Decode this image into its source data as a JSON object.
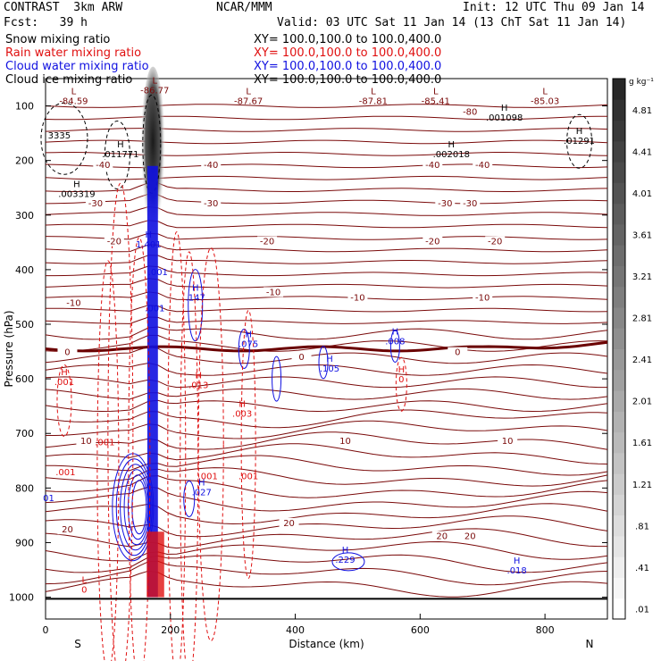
{
  "header": {
    "model": "CONTRAST  3km ARW",
    "org": "NCAR/MMM",
    "init": "Init: 12 UTC Thu 09 Jan 14",
    "fcst": "Fcst:   39 h",
    "valid": "Valid: 03 UTC Sat 11 Jan 14 (13 ChT Sat 11 Jan 14)"
  },
  "colors": {
    "temp": "#7a0a0a",
    "zero": "#6a0000",
    "rain": "#e01010",
    "cloudwater": "#1010e0",
    "black": "#000000"
  },
  "legend": [
    {
      "label": "Snow mixing ratio",
      "xy": "XY= 100.0,100.0 to 100.0,400.0",
      "color": "#000000"
    },
    {
      "label": "Rain water mixing ratio",
      "xy": "XY= 100.0,100.0 to 100.0,400.0",
      "color": "#e01010"
    },
    {
      "label": "Cloud water mixing ratio",
      "xy": "XY= 100.0,100.0 to 100.0,400.0",
      "color": "#1010e0"
    },
    {
      "label": "Cloud ice mixing ratio",
      "xy": "XY= 100.0,100.0 to 100.0,400.0",
      "color": "#000000"
    }
  ],
  "chart_data": {
    "type": "cross-section contour",
    "xlabel": "Distance (km)",
    "ylabel": "Pressure (hPa)",
    "xlim": [
      0,
      900
    ],
    "ylim": [
      1040,
      50
    ],
    "x_ticks": [
      0,
      200,
      400,
      600,
      800
    ],
    "y_ticks": [
      100,
      200,
      300,
      400,
      500,
      600,
      700,
      800,
      900,
      1000
    ],
    "x_end_labels": [
      "S",
      "N"
    ],
    "colorbar": {
      "unit": "g kg⁻¹",
      "labels": [
        ".01",
        ".41",
        ".81",
        "1.21",
        "1.61",
        "2.01",
        "2.41",
        "2.81",
        "3.21",
        "3.61",
        "4.01",
        "4.41",
        "4.81"
      ]
    },
    "temperature_isotherms": [
      {
        "value": -40,
        "p": 205
      },
      {
        "value": -30,
        "p": 258
      },
      {
        "value": -20,
        "p": 330
      },
      {
        "value": -10,
        "p": 412
      },
      {
        "value": 0,
        "p": 512
      },
      {
        "value": 10,
        "p": 605
      },
      {
        "value": 20,
        "p": 700
      }
    ],
    "isotherm_labels": [
      {
        "text": "-40",
        "x": 92,
        "p": 212
      },
      {
        "text": "-40",
        "x": 265,
        "p": 212
      },
      {
        "text": "-40",
        "x": 620,
        "p": 212
      },
      {
        "text": "-40",
        "x": 700,
        "p": 212
      },
      {
        "text": "-30",
        "x": 80,
        "p": 282
      },
      {
        "text": "-30",
        "x": 265,
        "p": 282
      },
      {
        "text": "-30",
        "x": 640,
        "p": 282
      },
      {
        "text": "-30",
        "x": 680,
        "p": 282
      },
      {
        "text": "-20",
        "x": 110,
        "p": 352
      },
      {
        "text": "-20",
        "x": 355,
        "p": 352
      },
      {
        "text": "-20",
        "x": 620,
        "p": 352
      },
      {
        "text": "-20",
        "x": 720,
        "p": 352
      },
      {
        "text": "-10",
        "x": 45,
        "p": 465
      },
      {
        "text": "-10",
        "x": 365,
        "p": 445
      },
      {
        "text": "-10",
        "x": 500,
        "p": 455
      },
      {
        "text": "-10",
        "x": 700,
        "p": 455
      },
      {
        "text": "0",
        "x": 35,
        "p": 555
      },
      {
        "text": "0",
        "x": 410,
        "p": 564
      },
      {
        "text": "0",
        "x": 660,
        "p": 555
      },
      {
        "text": "10",
        "x": 65,
        "p": 718
      },
      {
        "text": "10",
        "x": 480,
        "p": 718
      },
      {
        "text": "10",
        "x": 740,
        "p": 718
      },
      {
        "text": "20",
        "x": 35,
        "p": 880
      },
      {
        "text": "20",
        "x": 390,
        "p": 868
      },
      {
        "text": "20",
        "x": 635,
        "p": 892
      },
      {
        "text": "20",
        "x": 680,
        "p": 892
      }
    ],
    "extrema": [
      {
        "kind": "L",
        "value": "-84.59",
        "x": 45,
        "p": 95,
        "color": "#7a0a0a"
      },
      {
        "kind": "L",
        "value": "-86.77",
        "x": 175,
        "p": 75,
        "color": "#7a0a0a"
      },
      {
        "kind": "L",
        "value": "-87.67",
        "x": 325,
        "p": 95,
        "color": "#7a0a0a"
      },
      {
        "kind": "L",
        "value": "-87.81",
        "x": 525,
        "p": 95,
        "color": "#7a0a0a"
      },
      {
        "kind": "L",
        "value": "-85.41",
        "x": 625,
        "p": 95,
        "color": "#7a0a0a"
      },
      {
        "kind": "L",
        "value": "-85.03",
        "x": 800,
        "p": 95,
        "color": "#7a0a0a"
      },
      {
        "kind": "",
        "value": "-80",
        "x": 680,
        "p": 115,
        "color": "#7a0a0a"
      },
      {
        "kind": "H",
        "value": ".001098",
        "x": 735,
        "p": 125,
        "color": "#000000"
      },
      {
        "kind": "",
        "value": "3335",
        "x": 22,
        "p": 158,
        "color": "#000000"
      },
      {
        "kind": "H",
        "value": ".011771",
        "x": 120,
        "p": 192,
        "color": "#000000"
      },
      {
        "kind": "H",
        "value": ".002018",
        "x": 650,
        "p": 192,
        "color": "#000000"
      },
      {
        "kind": "H",
        "value": ".01291",
        "x": 855,
        "p": 168,
        "color": "#000000"
      },
      {
        "kind": "H",
        "value": ".003319",
        "x": 50,
        "p": 265,
        "color": "#000000"
      },
      {
        "kind": "H",
        "value": "1.401",
        "x": 165,
        "p": 358,
        "color": "#1010e0"
      },
      {
        "kind": "",
        "value": ".001",
        "x": 180,
        "p": 408,
        "color": "#1010e0"
      },
      {
        "kind": "H",
        "value": ".147",
        "x": 240,
        "p": 455,
        "color": "#1010e0"
      },
      {
        "kind": "",
        "value": ".001",
        "x": 175,
        "p": 475,
        "color": "#1010e0"
      },
      {
        "kind": "H",
        "value": ".075",
        "x": 325,
        "p": 540,
        "color": "#1010e0"
      },
      {
        "kind": "H",
        "value": ".008",
        "x": 560,
        "p": 535,
        "color": "#1010e0"
      },
      {
        "kind": "H",
        "value": ".105",
        "x": 455,
        "p": 585,
        "color": "#1010e0"
      },
      {
        "kind": "H",
        "value": ".001",
        "x": 30,
        "p": 610,
        "color": "#e01010"
      },
      {
        "kind": "H",
        "value": "0",
        "x": 570,
        "p": 605,
        "color": "#e01010"
      },
      {
        "kind": "H",
        "value": ".013",
        "x": 245,
        "p": 615,
        "color": "#e01010"
      },
      {
        "kind": "H",
        "value": ".003",
        "x": 315,
        "p": 668,
        "color": "#e01010"
      },
      {
        "kind": "",
        "value": ".001",
        "x": 95,
        "p": 720,
        "color": "#e01010"
      },
      {
        "kind": "",
        "value": ".001",
        "x": 32,
        "p": 775,
        "color": "#e01010"
      },
      {
        "kind": "",
        "value": ".001",
        "x": 260,
        "p": 782,
        "color": "#e01010"
      },
      {
        "kind": "",
        "value": ".001",
        "x": 325,
        "p": 782,
        "color": "#e01010"
      },
      {
        "kind": "H",
        "value": ".027",
        "x": 250,
        "p": 812,
        "color": "#1010e0"
      },
      {
        "kind": "H",
        "value": ".229",
        "x": 480,
        "p": 935,
        "color": "#1010e0"
      },
      {
        "kind": "H",
        "value": ".018",
        "x": 755,
        "p": 955,
        "color": "#1010e0"
      },
      {
        "kind": "",
        "value": "01",
        "x": 5,
        "p": 822,
        "color": "#1010e0"
      },
      {
        "kind": "L",
        "value": "0",
        "x": 62,
        "p": 990,
        "color": "#e01010"
      }
    ]
  }
}
